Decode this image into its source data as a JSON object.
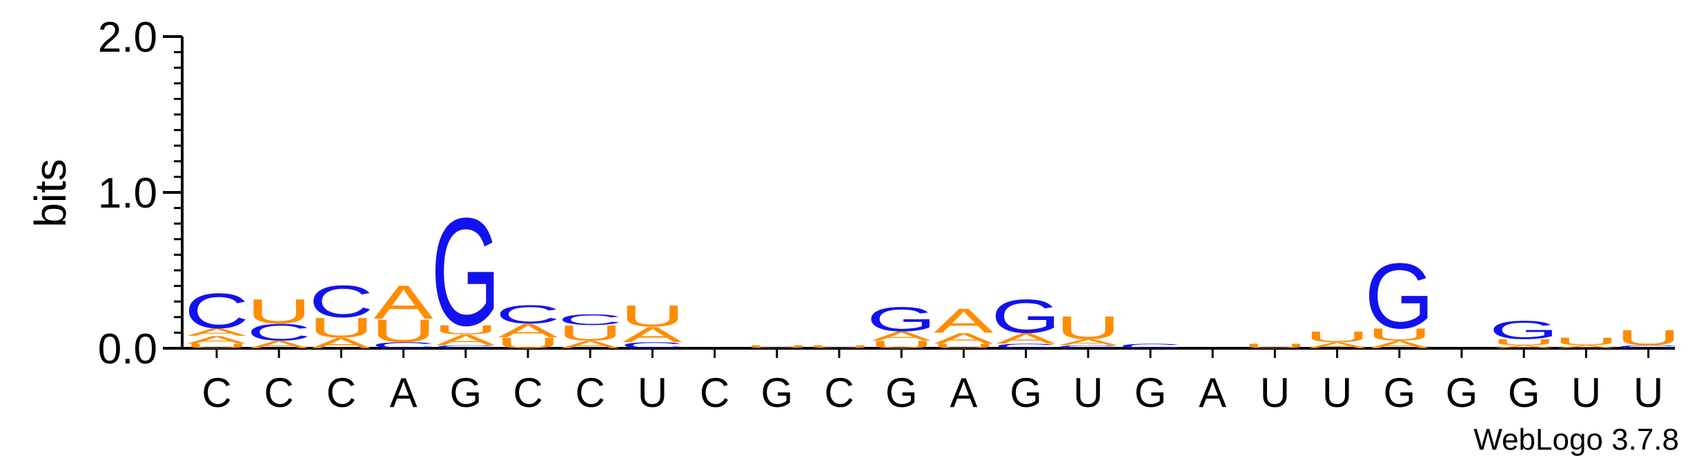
{
  "chart_data": {
    "type": "sequence-logo",
    "ylabel": "bits",
    "ylim": [
      0,
      2.0
    ],
    "yticks": [
      "0.0",
      "1.0",
      "2.0"
    ],
    "footer": "WebLogo 3.7.8",
    "colors": {
      "A": "#FF8C00",
      "U": "#FF8C00",
      "C": "#1212EE",
      "G": "#1212EE"
    },
    "positions": [
      {
        "label": "C",
        "stack": [
          [
            "U",
            0.03
          ],
          [
            "A",
            0.05
          ],
          [
            "A",
            0.05
          ],
          [
            "C",
            0.23
          ]
        ]
      },
      {
        "label": "C",
        "stack": [
          [
            "A",
            0.05
          ],
          [
            "C",
            0.11
          ],
          [
            "U",
            0.16
          ]
        ]
      },
      {
        "label": "C",
        "stack": [
          [
            "A",
            0.07
          ],
          [
            "U",
            0.13
          ],
          [
            "C",
            0.21
          ]
        ]
      },
      {
        "label": "A",
        "stack": [
          [
            "C",
            0.04
          ],
          [
            "U",
            0.15
          ],
          [
            "A",
            0.22
          ]
        ]
      },
      {
        "label": "G",
        "stack": [
          [
            "C",
            0.02
          ],
          [
            "A",
            0.07
          ],
          [
            "U",
            0.06
          ],
          [
            "G",
            0.71
          ]
        ]
      },
      {
        "label": "C",
        "stack": [
          [
            "U",
            0.07
          ],
          [
            "A",
            0.09
          ],
          [
            "C",
            0.12
          ]
        ]
      },
      {
        "label": "C",
        "stack": [
          [
            "A",
            0.05
          ],
          [
            "U",
            0.1
          ],
          [
            "C",
            0.07
          ]
        ]
      },
      {
        "label": "U",
        "stack": [
          [
            "C",
            0.04
          ],
          [
            "A",
            0.1
          ],
          [
            "U",
            0.14
          ]
        ]
      },
      {
        "label": "C",
        "stack": []
      },
      {
        "label": "G",
        "stack": [
          [
            "U",
            0.02
          ]
        ]
      },
      {
        "label": "C",
        "stack": [
          [
            "U",
            0.02
          ]
        ]
      },
      {
        "label": "G",
        "stack": [
          [
            "U",
            0.05
          ],
          [
            "A",
            0.06
          ],
          [
            "G",
            0.16
          ]
        ]
      },
      {
        "label": "A",
        "stack": [
          [
            "U",
            0.03
          ],
          [
            "A",
            0.07
          ],
          [
            "A",
            0.16
          ]
        ]
      },
      {
        "label": "G",
        "stack": [
          [
            "C",
            0.03
          ],
          [
            "A",
            0.07
          ],
          [
            "G",
            0.22
          ]
        ]
      },
      {
        "label": "U",
        "stack": [
          [
            "C",
            0.02
          ],
          [
            "A",
            0.04
          ],
          [
            "U",
            0.15
          ]
        ]
      },
      {
        "label": "G",
        "stack": [
          [
            "C",
            0.03
          ]
        ]
      },
      {
        "label": "A",
        "stack": []
      },
      {
        "label": "U",
        "stack": [
          [
            "U",
            0.03
          ]
        ]
      },
      {
        "label": "U",
        "stack": [
          [
            "A",
            0.04
          ],
          [
            "U",
            0.07
          ]
        ]
      },
      {
        "label": "G",
        "stack": [
          [
            "A",
            0.05
          ],
          [
            "U",
            0.08
          ],
          [
            "G",
            0.43
          ]
        ]
      },
      {
        "label": "G",
        "stack": []
      },
      {
        "label": "G",
        "stack": [
          [
            "A",
            0.02
          ],
          [
            "U",
            0.04
          ],
          [
            "G",
            0.12
          ]
        ]
      },
      {
        "label": "U",
        "stack": [
          [
            "A",
            0.02
          ],
          [
            "U",
            0.05
          ]
        ]
      },
      {
        "label": "U",
        "stack": [
          [
            "C",
            0.02
          ],
          [
            "U",
            0.1
          ]
        ]
      }
    ]
  }
}
